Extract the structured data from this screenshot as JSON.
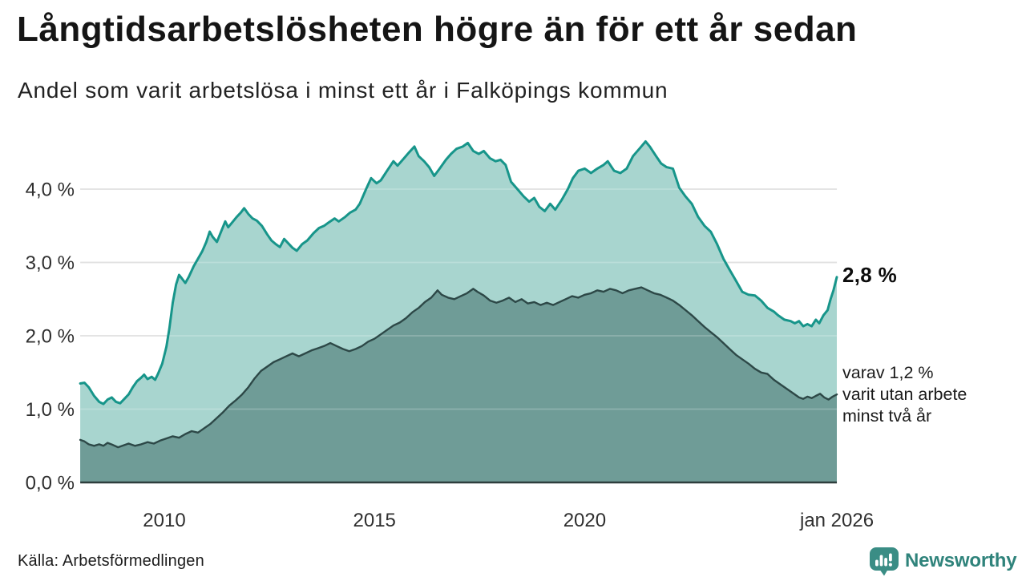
{
  "header": {
    "title": "Långtidsarbetslösheten högre än för ett år sedan",
    "subtitle": "Andel som varit arbetslösa i minst ett år i Falköpings kommun"
  },
  "footer": {
    "source": "Källa: Arbetsförmedlingen",
    "brand": "Newsworthy"
  },
  "colors": {
    "series1_line": "#17958a",
    "series1_fill": "#a8d5cf",
    "series2_line": "#2d4847",
    "series2_fill": "#6f9c97",
    "gridline": "#d9d9d9",
    "axis_line": "#2e3e3d",
    "tick_text": "#2f2f2f",
    "brand_teal": "#2f837b",
    "brand_icon": "#3a8d85"
  },
  "chart_data": {
    "type": "area",
    "title": "Långtidsarbetslösheten högre än för ett år sedan",
    "subtitle": "Andel som varit arbetslösa i minst ett år i Falköpings kommun",
    "xlabel": "",
    "ylabel": "",
    "grid": true,
    "legend_position": "none",
    "xlim": [
      2008,
      2026.05
    ],
    "ylim": [
      0,
      4.7
    ],
    "x_ticks": [
      {
        "x": 2010,
        "label": "2010"
      },
      {
        "x": 2015,
        "label": "2015"
      },
      {
        "x": 2020,
        "label": "2020"
      },
      {
        "x": 2026,
        "label": "jan 2026"
      }
    ],
    "y_ticks": [
      {
        "v": 0.0,
        "label": "0,0 %"
      },
      {
        "v": 1.0,
        "label": "1,0 %"
      },
      {
        "v": 2.0,
        "label": "2,0 %"
      },
      {
        "v": 3.0,
        "label": "3,0 %"
      },
      {
        "v": 4.0,
        "label": "4,0 %"
      }
    ],
    "annotations": {
      "latest_value": "2,8 %",
      "note": "varav 1,2 %\nvarit utan arbete\nminst två år"
    },
    "series": [
      {
        "name": "Andel som varit arbetslösa minst ett år",
        "latest_value_pct": 2.8,
        "color": "#17958a",
        "fill": "#a8d5cf",
        "points": [
          [
            2008.0,
            1.35
          ],
          [
            2008.1,
            1.36
          ],
          [
            2008.2,
            1.3
          ],
          [
            2008.33,
            1.18
          ],
          [
            2008.45,
            1.1
          ],
          [
            2008.55,
            1.07
          ],
          [
            2008.65,
            1.13
          ],
          [
            2008.75,
            1.16
          ],
          [
            2008.85,
            1.1
          ],
          [
            2008.95,
            1.08
          ],
          [
            2009.05,
            1.14
          ],
          [
            2009.15,
            1.2
          ],
          [
            2009.25,
            1.3
          ],
          [
            2009.35,
            1.38
          ],
          [
            2009.45,
            1.43
          ],
          [
            2009.52,
            1.47
          ],
          [
            2009.6,
            1.41
          ],
          [
            2009.7,
            1.44
          ],
          [
            2009.78,
            1.4
          ],
          [
            2009.85,
            1.48
          ],
          [
            2009.95,
            1.62
          ],
          [
            2010.05,
            1.85
          ],
          [
            2010.12,
            2.1
          ],
          [
            2010.2,
            2.45
          ],
          [
            2010.28,
            2.7
          ],
          [
            2010.35,
            2.83
          ],
          [
            2010.42,
            2.78
          ],
          [
            2010.5,
            2.72
          ],
          [
            2010.58,
            2.8
          ],
          [
            2010.7,
            2.95
          ],
          [
            2010.8,
            3.05
          ],
          [
            2010.9,
            3.15
          ],
          [
            2011.0,
            3.28
          ],
          [
            2011.08,
            3.42
          ],
          [
            2011.15,
            3.35
          ],
          [
            2011.25,
            3.28
          ],
          [
            2011.35,
            3.42
          ],
          [
            2011.45,
            3.56
          ],
          [
            2011.52,
            3.48
          ],
          [
            2011.62,
            3.55
          ],
          [
            2011.72,
            3.62
          ],
          [
            2011.82,
            3.68
          ],
          [
            2011.9,
            3.74
          ],
          [
            2012.0,
            3.66
          ],
          [
            2012.1,
            3.6
          ],
          [
            2012.2,
            3.57
          ],
          [
            2012.32,
            3.5
          ],
          [
            2012.45,
            3.38
          ],
          [
            2012.55,
            3.3
          ],
          [
            2012.65,
            3.25
          ],
          [
            2012.75,
            3.21
          ],
          [
            2012.85,
            3.32
          ],
          [
            2012.95,
            3.26
          ],
          [
            2013.05,
            3.2
          ],
          [
            2013.15,
            3.16
          ],
          [
            2013.28,
            3.25
          ],
          [
            2013.4,
            3.3
          ],
          [
            2013.55,
            3.4
          ],
          [
            2013.68,
            3.47
          ],
          [
            2013.8,
            3.5
          ],
          [
            2013.92,
            3.55
          ],
          [
            2014.05,
            3.6
          ],
          [
            2014.15,
            3.56
          ],
          [
            2014.3,
            3.62
          ],
          [
            2014.42,
            3.68
          ],
          [
            2014.55,
            3.72
          ],
          [
            2014.65,
            3.8
          ],
          [
            2014.8,
            4.0
          ],
          [
            2014.92,
            4.15
          ],
          [
            2015.05,
            4.08
          ],
          [
            2015.15,
            4.12
          ],
          [
            2015.3,
            4.25
          ],
          [
            2015.45,
            4.38
          ],
          [
            2015.55,
            4.32
          ],
          [
            2015.7,
            4.42
          ],
          [
            2015.82,
            4.5
          ],
          [
            2015.95,
            4.58
          ],
          [
            2016.05,
            4.45
          ],
          [
            2016.18,
            4.38
          ],
          [
            2016.3,
            4.3
          ],
          [
            2016.42,
            4.18
          ],
          [
            2016.55,
            4.28
          ],
          [
            2016.7,
            4.4
          ],
          [
            2016.82,
            4.48
          ],
          [
            2016.95,
            4.55
          ],
          [
            2017.1,
            4.58
          ],
          [
            2017.22,
            4.63
          ],
          [
            2017.35,
            4.52
          ],
          [
            2017.48,
            4.48
          ],
          [
            2017.6,
            4.52
          ],
          [
            2017.75,
            4.42
          ],
          [
            2017.88,
            4.38
          ],
          [
            2018.0,
            4.4
          ],
          [
            2018.12,
            4.33
          ],
          [
            2018.25,
            4.1
          ],
          [
            2018.4,
            4.0
          ],
          [
            2018.55,
            3.9
          ],
          [
            2018.68,
            3.83
          ],
          [
            2018.8,
            3.88
          ],
          [
            2018.92,
            3.76
          ],
          [
            2019.05,
            3.7
          ],
          [
            2019.18,
            3.8
          ],
          [
            2019.3,
            3.72
          ],
          [
            2019.45,
            3.85
          ],
          [
            2019.6,
            4.0
          ],
          [
            2019.72,
            4.15
          ],
          [
            2019.85,
            4.25
          ],
          [
            2020.0,
            4.28
          ],
          [
            2020.15,
            4.22
          ],
          [
            2020.3,
            4.28
          ],
          [
            2020.45,
            4.33
          ],
          [
            2020.55,
            4.38
          ],
          [
            2020.7,
            4.25
          ],
          [
            2020.85,
            4.22
          ],
          [
            2021.0,
            4.28
          ],
          [
            2021.15,
            4.45
          ],
          [
            2021.3,
            4.55
          ],
          [
            2021.45,
            4.65
          ],
          [
            2021.55,
            4.58
          ],
          [
            2021.7,
            4.45
          ],
          [
            2021.82,
            4.35
          ],
          [
            2021.95,
            4.3
          ],
          [
            2022.1,
            4.28
          ],
          [
            2022.25,
            4.02
          ],
          [
            2022.4,
            3.9
          ],
          [
            2022.55,
            3.8
          ],
          [
            2022.7,
            3.62
          ],
          [
            2022.85,
            3.5
          ],
          [
            2023.0,
            3.42
          ],
          [
            2023.15,
            3.25
          ],
          [
            2023.3,
            3.05
          ],
          [
            2023.45,
            2.9
          ],
          [
            2023.6,
            2.75
          ],
          [
            2023.75,
            2.6
          ],
          [
            2023.9,
            2.56
          ],
          [
            2024.05,
            2.55
          ],
          [
            2024.2,
            2.48
          ],
          [
            2024.35,
            2.38
          ],
          [
            2024.5,
            2.33
          ],
          [
            2024.6,
            2.28
          ],
          [
            2024.75,
            2.22
          ],
          [
            2024.9,
            2.2
          ],
          [
            2025.0,
            2.17
          ],
          [
            2025.1,
            2.2
          ],
          [
            2025.2,
            2.13
          ],
          [
            2025.3,
            2.16
          ],
          [
            2025.4,
            2.13
          ],
          [
            2025.5,
            2.22
          ],
          [
            2025.58,
            2.17
          ],
          [
            2025.68,
            2.28
          ],
          [
            2025.78,
            2.35
          ],
          [
            2025.85,
            2.5
          ],
          [
            2025.92,
            2.62
          ],
          [
            2026.0,
            2.8
          ]
        ]
      },
      {
        "name": "varav utan arbete minst två år",
        "latest_value_pct": 1.2,
        "color": "#2d4847",
        "fill": "#6f9c97",
        "points": [
          [
            2008.0,
            0.58
          ],
          [
            2008.1,
            0.56
          ],
          [
            2008.2,
            0.52
          ],
          [
            2008.33,
            0.5
          ],
          [
            2008.45,
            0.52
          ],
          [
            2008.55,
            0.5
          ],
          [
            2008.65,
            0.54
          ],
          [
            2008.78,
            0.51
          ],
          [
            2008.9,
            0.48
          ],
          [
            2009.0,
            0.5
          ],
          [
            2009.15,
            0.53
          ],
          [
            2009.3,
            0.5
          ],
          [
            2009.45,
            0.52
          ],
          [
            2009.6,
            0.55
          ],
          [
            2009.75,
            0.53
          ],
          [
            2009.9,
            0.57
          ],
          [
            2010.05,
            0.6
          ],
          [
            2010.2,
            0.63
          ],
          [
            2010.35,
            0.61
          ],
          [
            2010.5,
            0.66
          ],
          [
            2010.65,
            0.7
          ],
          [
            2010.8,
            0.68
          ],
          [
            2010.95,
            0.74
          ],
          [
            2011.1,
            0.8
          ],
          [
            2011.25,
            0.88
          ],
          [
            2011.4,
            0.96
          ],
          [
            2011.55,
            1.05
          ],
          [
            2011.7,
            1.12
          ],
          [
            2011.85,
            1.2
          ],
          [
            2012.0,
            1.3
          ],
          [
            2012.15,
            1.42
          ],
          [
            2012.3,
            1.52
          ],
          [
            2012.45,
            1.58
          ],
          [
            2012.6,
            1.64
          ],
          [
            2012.75,
            1.68
          ],
          [
            2012.9,
            1.72
          ],
          [
            2013.05,
            1.76
          ],
          [
            2013.2,
            1.72
          ],
          [
            2013.35,
            1.76
          ],
          [
            2013.5,
            1.8
          ],
          [
            2013.65,
            1.83
          ],
          [
            2013.8,
            1.86
          ],
          [
            2013.95,
            1.9
          ],
          [
            2014.1,
            1.86
          ],
          [
            2014.25,
            1.82
          ],
          [
            2014.4,
            1.79
          ],
          [
            2014.55,
            1.82
          ],
          [
            2014.7,
            1.86
          ],
          [
            2014.85,
            1.92
          ],
          [
            2015.0,
            1.96
          ],
          [
            2015.15,
            2.02
          ],
          [
            2015.3,
            2.08
          ],
          [
            2015.45,
            2.14
          ],
          [
            2015.6,
            2.18
          ],
          [
            2015.75,
            2.24
          ],
          [
            2015.9,
            2.32
          ],
          [
            2016.05,
            2.38
          ],
          [
            2016.2,
            2.46
          ],
          [
            2016.35,
            2.52
          ],
          [
            2016.5,
            2.62
          ],
          [
            2016.6,
            2.56
          ],
          [
            2016.75,
            2.52
          ],
          [
            2016.9,
            2.5
          ],
          [
            2017.05,
            2.54
          ],
          [
            2017.2,
            2.58
          ],
          [
            2017.35,
            2.64
          ],
          [
            2017.45,
            2.6
          ],
          [
            2017.6,
            2.55
          ],
          [
            2017.75,
            2.48
          ],
          [
            2017.9,
            2.45
          ],
          [
            2018.05,
            2.48
          ],
          [
            2018.2,
            2.52
          ],
          [
            2018.35,
            2.46
          ],
          [
            2018.5,
            2.5
          ],
          [
            2018.65,
            2.44
          ],
          [
            2018.8,
            2.46
          ],
          [
            2018.95,
            2.42
          ],
          [
            2019.1,
            2.45
          ],
          [
            2019.25,
            2.42
          ],
          [
            2019.4,
            2.46
          ],
          [
            2019.55,
            2.5
          ],
          [
            2019.7,
            2.54
          ],
          [
            2019.85,
            2.52
          ],
          [
            2020.0,
            2.56
          ],
          [
            2020.15,
            2.58
          ],
          [
            2020.3,
            2.62
          ],
          [
            2020.45,
            2.6
          ],
          [
            2020.6,
            2.64
          ],
          [
            2020.75,
            2.62
          ],
          [
            2020.9,
            2.58
          ],
          [
            2021.05,
            2.62
          ],
          [
            2021.2,
            2.64
          ],
          [
            2021.35,
            2.66
          ],
          [
            2021.5,
            2.62
          ],
          [
            2021.65,
            2.58
          ],
          [
            2021.8,
            2.56
          ],
          [
            2021.95,
            2.52
          ],
          [
            2022.1,
            2.48
          ],
          [
            2022.25,
            2.42
          ],
          [
            2022.4,
            2.35
          ],
          [
            2022.55,
            2.28
          ],
          [
            2022.7,
            2.2
          ],
          [
            2022.85,
            2.12
          ],
          [
            2023.0,
            2.05
          ],
          [
            2023.15,
            1.98
          ],
          [
            2023.3,
            1.9
          ],
          [
            2023.45,
            1.82
          ],
          [
            2023.6,
            1.74
          ],
          [
            2023.75,
            1.68
          ],
          [
            2023.9,
            1.62
          ],
          [
            2024.05,
            1.55
          ],
          [
            2024.2,
            1.5
          ],
          [
            2024.35,
            1.48
          ],
          [
            2024.5,
            1.4
          ],
          [
            2024.65,
            1.34
          ],
          [
            2024.8,
            1.28
          ],
          [
            2024.95,
            1.22
          ],
          [
            2025.1,
            1.16
          ],
          [
            2025.2,
            1.14
          ],
          [
            2025.3,
            1.17
          ],
          [
            2025.4,
            1.15
          ],
          [
            2025.5,
            1.18
          ],
          [
            2025.6,
            1.21
          ],
          [
            2025.7,
            1.16
          ],
          [
            2025.8,
            1.13
          ],
          [
            2025.9,
            1.17
          ],
          [
            2026.0,
            1.2
          ]
        ]
      }
    ]
  }
}
